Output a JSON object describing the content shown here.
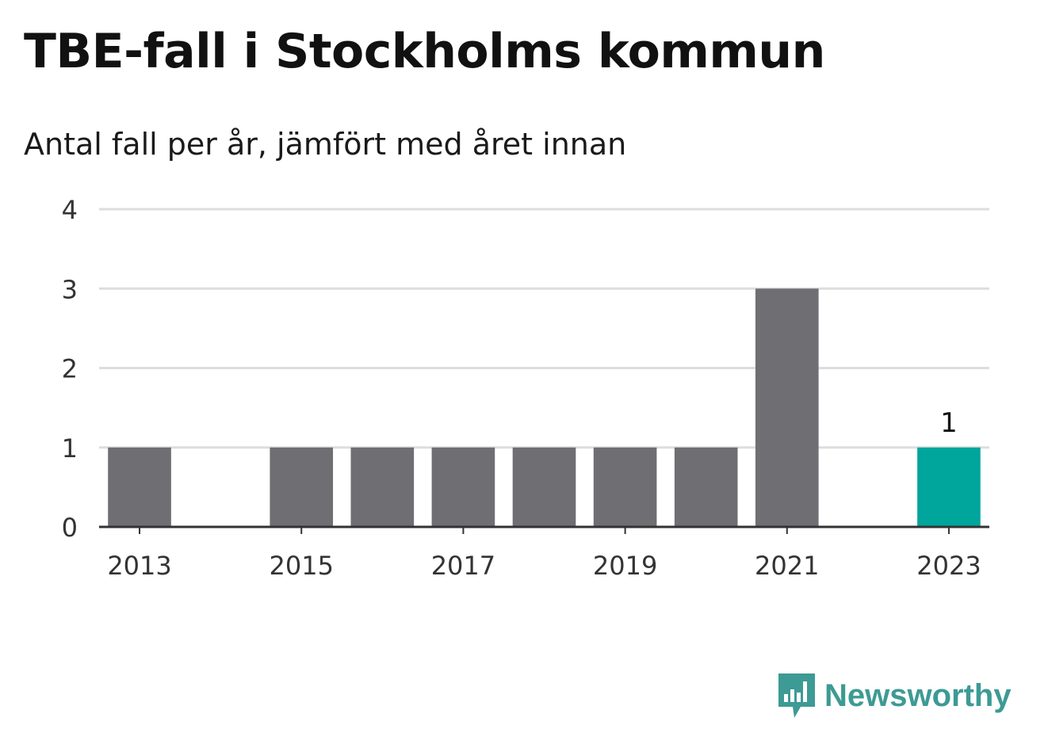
{
  "title": "TBE-fall i Stockholms kommun",
  "subtitle": "Antal fall per år, jämfört med året innan",
  "brand": {
    "name": "Newsworthy",
    "color": "#3d9a94"
  },
  "colors": {
    "bar": "#6e6e73",
    "highlight": "#00a59c",
    "grid": "#dddddd",
    "axis": "#333333"
  },
  "chart_data": {
    "type": "bar",
    "categories": [
      "2013",
      "2014",
      "2015",
      "2016",
      "2017",
      "2018",
      "2019",
      "2020",
      "2021",
      "2022",
      "2023"
    ],
    "values": [
      1,
      0,
      1,
      1,
      1,
      1,
      1,
      1,
      3,
      0,
      1
    ],
    "highlight_index": 10,
    "data_labels": [
      {
        "category": "2023",
        "text": "1"
      }
    ],
    "x_tick_labels": [
      "2013",
      "2015",
      "2017",
      "2019",
      "2021",
      "2023"
    ],
    "y_ticks": [
      0,
      1,
      2,
      3,
      4
    ],
    "ylim": [
      0,
      4
    ],
    "xlabel": "",
    "ylabel": "",
    "grid": true,
    "legend": "none"
  }
}
